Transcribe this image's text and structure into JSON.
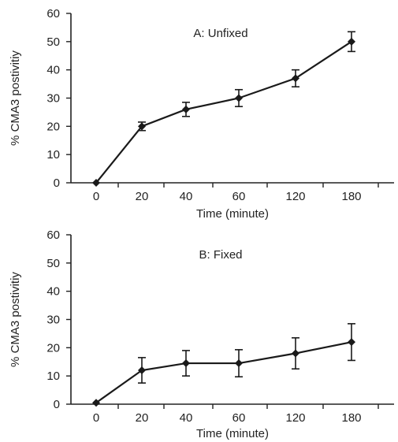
{
  "chart_data": [
    {
      "type": "line",
      "title": "A: Unfixed",
      "xlabel": "Time (minute)",
      "ylabel": "% CMA3 postivitiy",
      "categories": [
        "0",
        "20",
        "40",
        "60",
        "120",
        "180"
      ],
      "values": [
        0,
        20,
        26,
        30,
        37,
        50
      ],
      "errors": [
        0,
        1.5,
        2.5,
        3,
        3,
        3.5
      ],
      "ylim": [
        0,
        60
      ],
      "yticks": [
        0,
        10,
        20,
        30,
        40,
        50,
        60
      ],
      "grid": false,
      "color": "#1a1a1a"
    },
    {
      "type": "line",
      "title": "B: Fixed",
      "xlabel": "Time (minute)",
      "ylabel": "% CMA3 postivitiy",
      "categories": [
        "0",
        "20",
        "40",
        "60",
        "120",
        "180"
      ],
      "values": [
        0.5,
        12,
        14.5,
        14.5,
        18,
        22
      ],
      "errors": [
        0,
        4.5,
        4.5,
        4.8,
        5.5,
        6.5
      ],
      "ylim": [
        0,
        60
      ],
      "yticks": [
        0,
        10,
        20,
        30,
        40,
        50,
        60
      ],
      "grid": false,
      "color": "#1a1a1a"
    }
  ]
}
